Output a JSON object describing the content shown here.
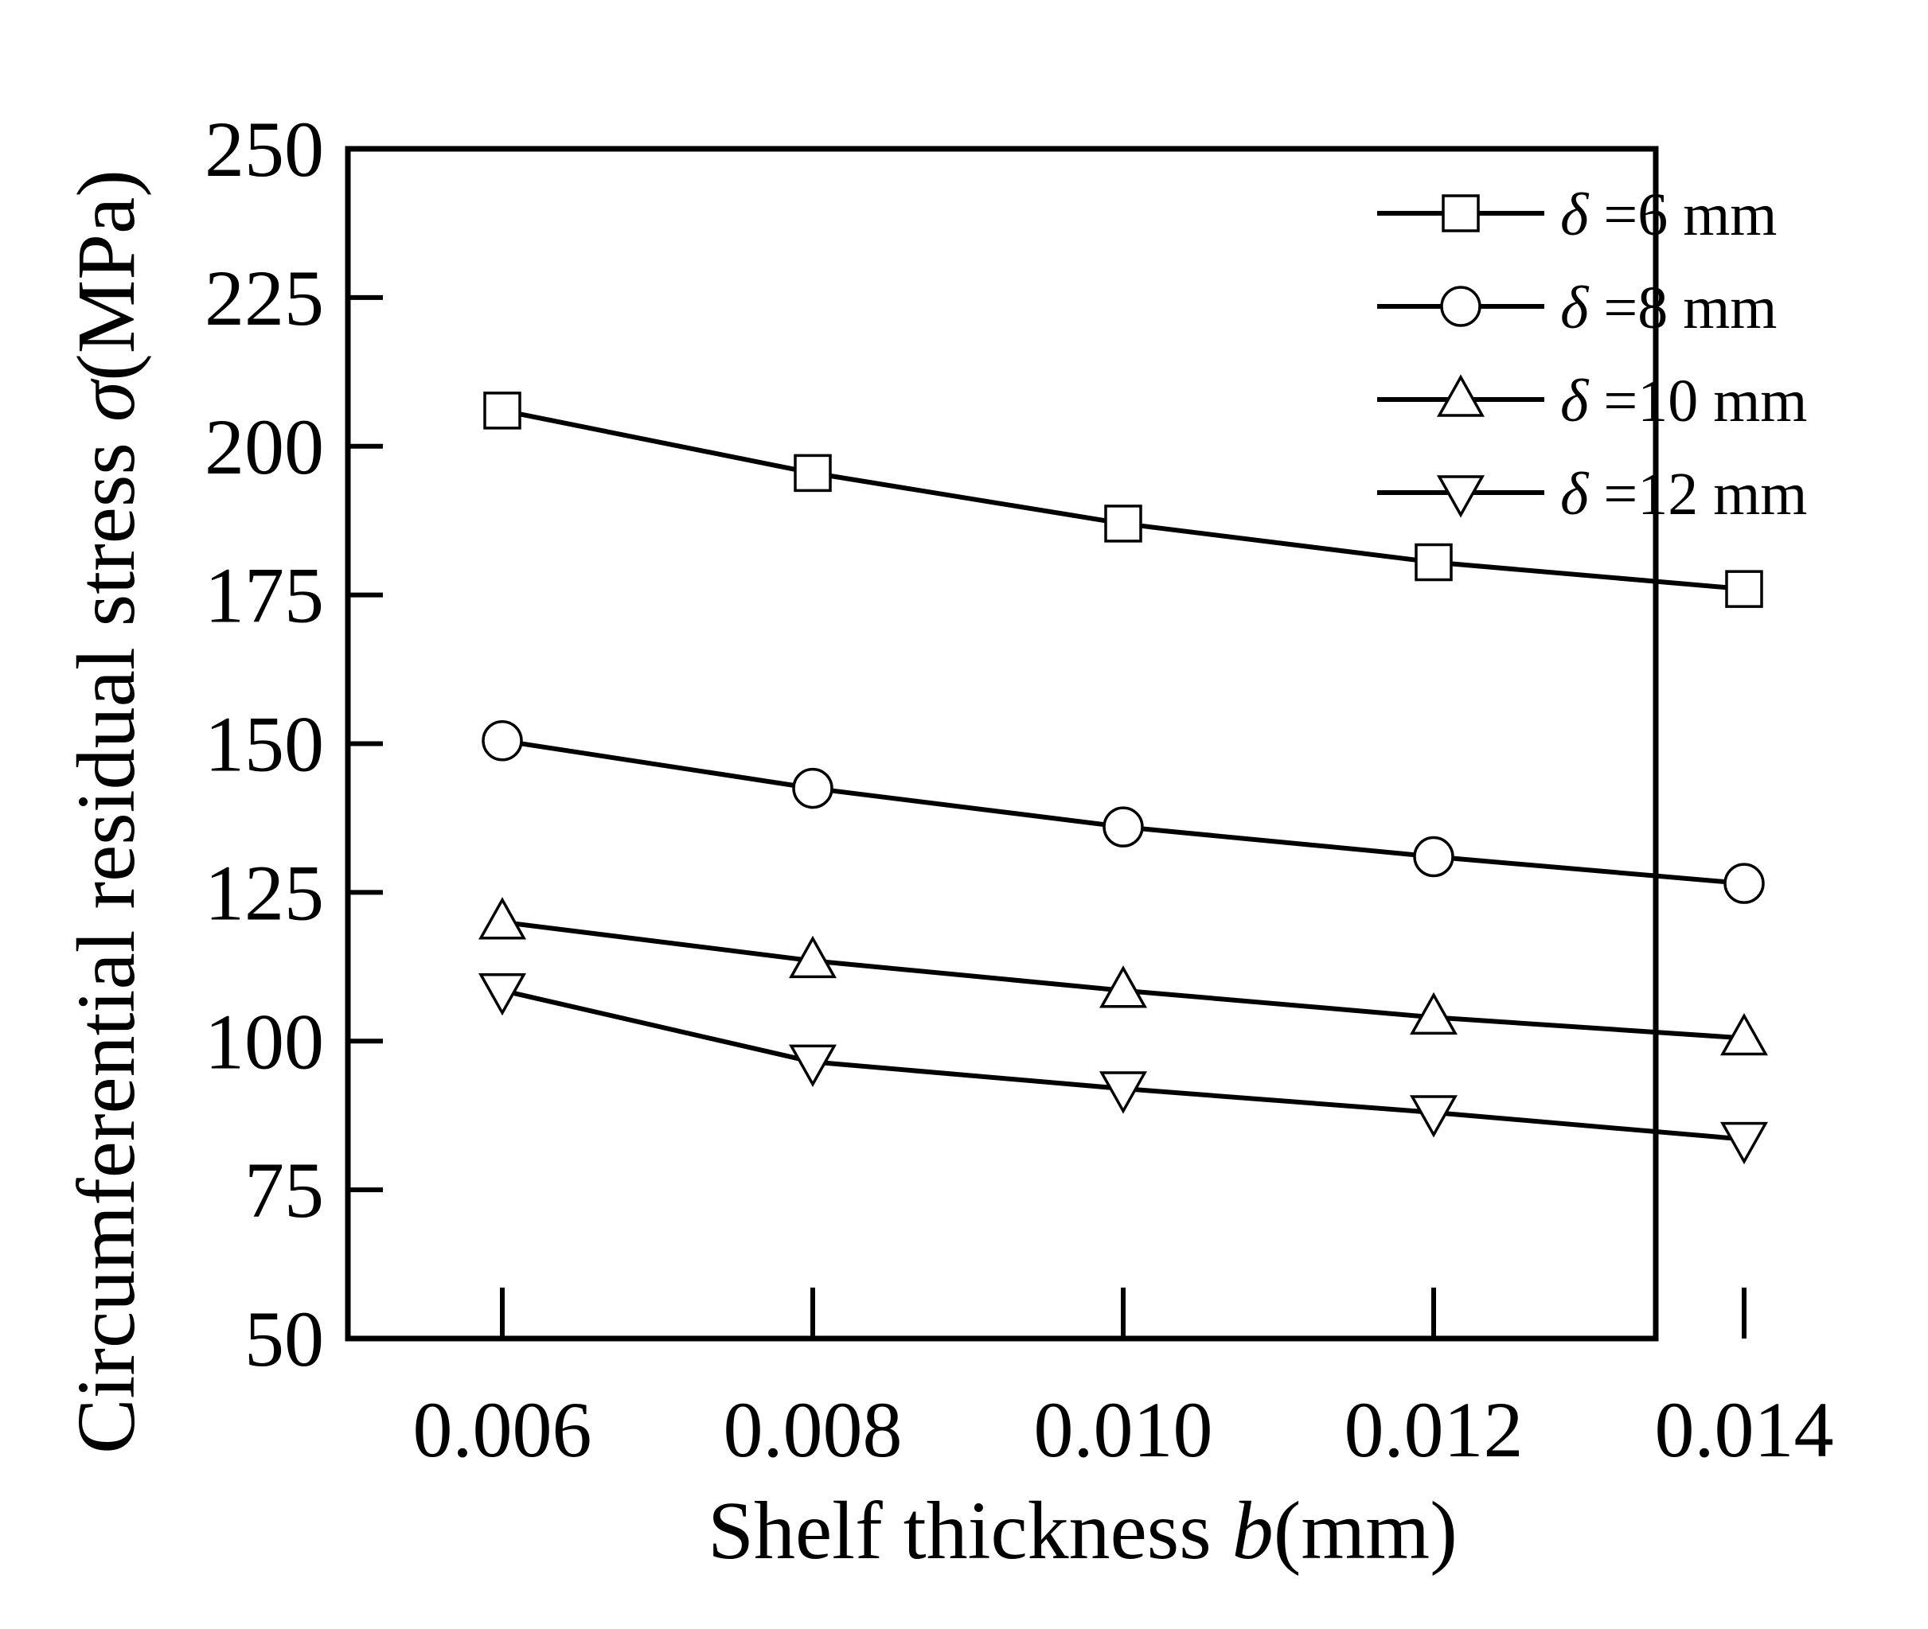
{
  "chart_data": {
    "type": "line",
    "title": "",
    "xlabel": {
      "prefix": "Shelf thickness ",
      "var": "b",
      "unit": "(mm)"
    },
    "ylabel": {
      "prefix": "Circumferential residual stress ",
      "var": "σ",
      "unit": "(MPa)"
    },
    "x": [
      0.006,
      0.008,
      0.01,
      0.012,
      0.014
    ],
    "x_tick_labels": [
      "0.006",
      "0.008",
      "0.010",
      "0.012",
      "0.014"
    ],
    "ylim": [
      50,
      250
    ],
    "y_ticks": [
      50,
      75,
      100,
      125,
      150,
      175,
      200,
      225,
      250
    ],
    "y_tick_labels": [
      "50",
      "75",
      "100",
      "125",
      "150",
      "175",
      "200",
      "225",
      "250"
    ],
    "grid": false,
    "legend_position": "top-right",
    "series": [
      {
        "name": "δ =6 mm",
        "legend_var": "δ",
        "legend_rest": " =6 mm",
        "marker": "square",
        "values": [
          206,
          195.5,
          187,
          180.5,
          176
        ]
      },
      {
        "name": "δ =8 mm",
        "legend_var": "δ",
        "legend_rest": " =8 mm",
        "marker": "circle",
        "values": [
          150.5,
          142.5,
          136,
          131,
          126.5
        ]
      },
      {
        "name": "δ =10 mm",
        "legend_var": "δ",
        "legend_rest": " =10 mm",
        "marker": "triangle-up",
        "values": [
          120,
          113.5,
          108.5,
          104,
          100.5
        ]
      },
      {
        "name": "δ =12 mm",
        "legend_var": "δ",
        "legend_rest": " =12 mm",
        "marker": "triangle-down",
        "values": [
          108.5,
          96.5,
          92,
          88,
          83.5
        ]
      }
    ]
  }
}
